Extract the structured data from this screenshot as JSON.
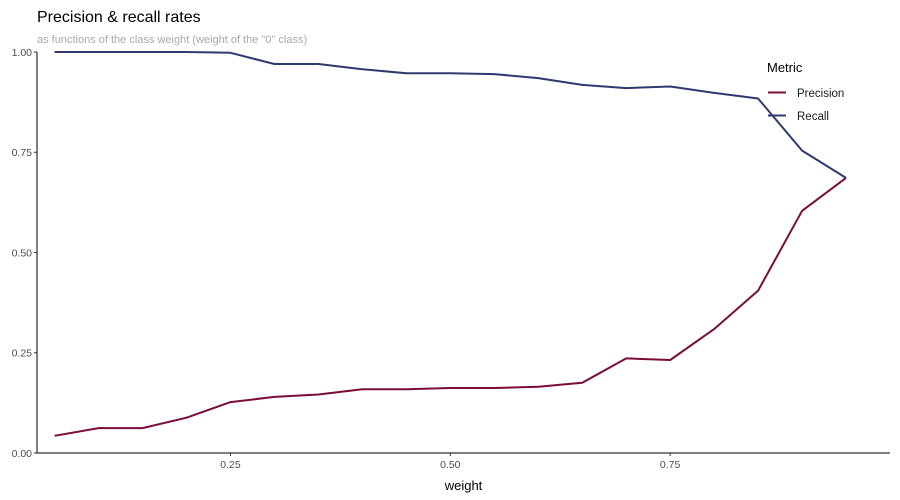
{
  "chart_data": {
    "type": "line",
    "title": "Precision & recall rates",
    "subtitle": "as functions of the class weight (weight of the \"0\" class)",
    "xlabel": "weight",
    "ylabel": "",
    "xlim": [
      0.03,
      1.0
    ],
    "ylim": [
      0.0,
      1.0
    ],
    "x_ticks": [
      0.25,
      0.5,
      0.75
    ],
    "x_tick_labels": [
      "0.25",
      "0.50",
      "0.75"
    ],
    "y_ticks": [
      0.0,
      0.25,
      0.5,
      0.75,
      1.0
    ],
    "y_tick_labels": [
      "0.00",
      "0.25",
      "0.50",
      "0.75",
      "1.00"
    ],
    "grid": false,
    "legend": {
      "title": "Metric",
      "placement": "top-right"
    },
    "x": [
      0.05,
      0.1,
      0.15,
      0.2,
      0.25,
      0.3,
      0.35,
      0.4,
      0.45,
      0.5,
      0.55,
      0.6,
      0.65,
      0.7,
      0.75,
      0.8,
      0.85,
      0.9,
      0.95
    ],
    "series": [
      {
        "name": "Precision",
        "color": "#7a0c3a",
        "values": [
          0.043,
          0.062,
          0.062,
          0.088,
          0.127,
          0.14,
          0.146,
          0.159,
          0.159,
          0.162,
          0.162,
          0.165,
          0.175,
          0.236,
          0.232,
          0.309,
          0.405,
          0.604,
          0.686
        ]
      },
      {
        "name": "Recall",
        "color": "#2e3a6e",
        "values": [
          1.0,
          1.0,
          1.0,
          1.0,
          0.998,
          0.97,
          0.97,
          0.957,
          0.947,
          0.947,
          0.945,
          0.935,
          0.918,
          0.91,
          0.914,
          0.898,
          0.884,
          0.754,
          0.686
        ]
      }
    ]
  }
}
